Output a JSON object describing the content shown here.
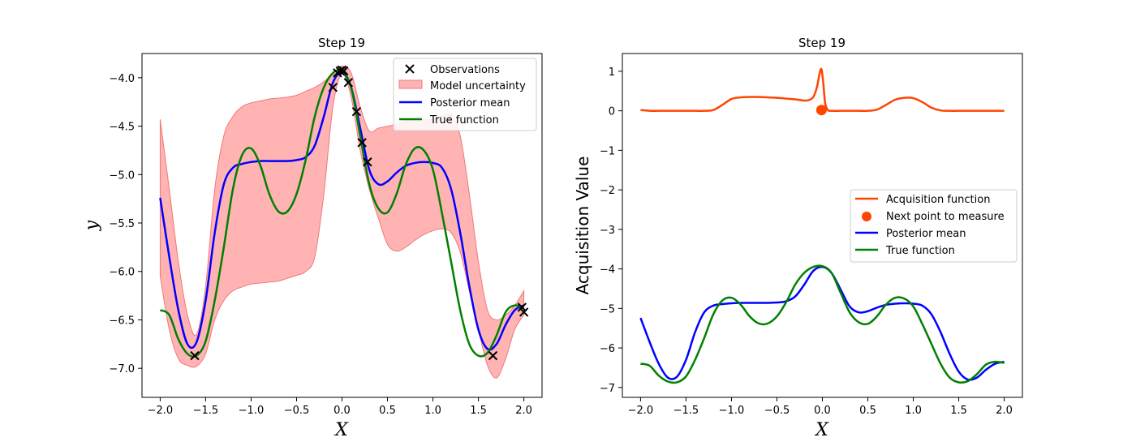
{
  "chart_data": [
    {
      "type": "line",
      "title": "Step 19",
      "xlabel": "X",
      "ylabel": "y",
      "xlim": [
        -2.2,
        2.2
      ],
      "ylim": [
        -7.3,
        -3.75
      ],
      "xticks": [
        -2.0,
        -1.5,
        -1.0,
        -0.5,
        0.0,
        0.5,
        1.0,
        1.5,
        2.0
      ],
      "xtick_labels": [
        "−2.0",
        "−1.5",
        "−1.0",
        "−0.5",
        "0.0",
        "0.5",
        "1.0",
        "1.5",
        "2.0"
      ],
      "yticks": [
        -7.0,
        -6.5,
        -6.0,
        -5.5,
        -5.0,
        -4.5,
        -4.0
      ],
      "ytick_labels": [
        "−7.0",
        "−6.5",
        "−6.0",
        "−5.5",
        "−5.0",
        "−4.5",
        "−4.0"
      ],
      "legend_position": "top-right",
      "legend": [
        "Observations",
        "Model uncertainty",
        "Posterior mean",
        "True function"
      ],
      "observations": {
        "name": "Observations",
        "color": "#000000",
        "x": [
          -1.62,
          -0.1,
          -0.05,
          -0.02,
          0.0,
          0.02,
          0.07,
          0.16,
          0.22,
          0.28,
          1.66,
          1.98,
          2.0
        ],
        "y": [
          -6.87,
          -4.1,
          -3.95,
          -3.93,
          -3.92,
          -3.93,
          -4.05,
          -4.35,
          -4.67,
          -4.87,
          -6.87,
          -6.37,
          -6.42
        ]
      },
      "uncertainty": {
        "name": "Model uncertainty",
        "color": "#ff9999",
        "x": [
          -2.0,
          -1.9,
          -1.8,
          -1.7,
          -1.6,
          -1.5,
          -1.4,
          -1.3,
          -1.2,
          -1.1,
          -1.0,
          -0.9,
          -0.8,
          -0.7,
          -0.6,
          -0.5,
          -0.4,
          -0.3,
          -0.2,
          -0.1,
          0.0,
          0.1,
          0.2,
          0.3,
          0.4,
          0.5,
          0.6,
          0.7,
          0.8,
          0.9,
          1.0,
          1.1,
          1.2,
          1.3,
          1.4,
          1.5,
          1.6,
          1.7,
          1.8,
          1.9,
          2.0
        ],
        "upper": [
          -4.43,
          -5.15,
          -5.9,
          -6.45,
          -6.65,
          -6.15,
          -5.15,
          -4.6,
          -4.4,
          -4.3,
          -4.26,
          -4.24,
          -4.22,
          -4.21,
          -4.2,
          -4.18,
          -4.14,
          -4.1,
          -4.04,
          -3.96,
          -3.88,
          -3.95,
          -4.3,
          -4.55,
          -4.52,
          -4.5,
          -4.48,
          -4.45,
          -4.43,
          -4.43,
          -4.43,
          -4.4,
          -4.38,
          -4.6,
          -5.2,
          -5.9,
          -6.4,
          -6.5,
          -6.45,
          -6.35,
          -6.2
        ],
        "lower": [
          -6.05,
          -6.6,
          -6.9,
          -6.97,
          -6.98,
          -6.85,
          -6.5,
          -6.3,
          -6.2,
          -6.16,
          -6.13,
          -6.12,
          -6.11,
          -6.1,
          -6.07,
          -6.04,
          -6.0,
          -5.85,
          -5.2,
          -4.3,
          -3.96,
          -4.2,
          -4.75,
          -5.15,
          -5.45,
          -5.72,
          -5.79,
          -5.75,
          -5.68,
          -5.62,
          -5.58,
          -5.56,
          -5.6,
          -5.8,
          -6.2,
          -6.6,
          -6.97,
          -7.1,
          -6.9,
          -6.6,
          -6.45
        ]
      },
      "series": [
        {
          "name": "Posterior mean",
          "color": "#0000ff",
          "x": [
            -2.0,
            -1.9,
            -1.8,
            -1.7,
            -1.6,
            -1.5,
            -1.4,
            -1.3,
            -1.2,
            -1.1,
            -1.0,
            -0.9,
            -0.8,
            -0.7,
            -0.6,
            -0.5,
            -0.4,
            -0.3,
            -0.2,
            -0.1,
            0.0,
            0.1,
            0.2,
            0.3,
            0.4,
            0.5,
            0.6,
            0.7,
            0.8,
            0.9,
            1.0,
            1.1,
            1.2,
            1.3,
            1.4,
            1.5,
            1.6,
            1.7,
            1.8,
            1.9,
            2.0
          ],
          "y": [
            -5.24,
            -5.85,
            -6.4,
            -6.75,
            -6.73,
            -6.3,
            -5.6,
            -5.1,
            -4.93,
            -4.89,
            -4.87,
            -4.86,
            -4.86,
            -4.86,
            -4.86,
            -4.85,
            -4.82,
            -4.7,
            -4.4,
            -4.05,
            -3.95,
            -4.1,
            -4.52,
            -4.95,
            -5.1,
            -5.07,
            -4.98,
            -4.91,
            -4.88,
            -4.87,
            -4.88,
            -4.93,
            -5.15,
            -5.6,
            -6.15,
            -6.6,
            -6.8,
            -6.75,
            -6.55,
            -6.4,
            -6.35
          ]
        },
        {
          "name": "True function",
          "color": "#008000",
          "x": [
            -2.0,
            -1.9,
            -1.8,
            -1.7,
            -1.6,
            -1.5,
            -1.4,
            -1.3,
            -1.2,
            -1.1,
            -1.0,
            -0.9,
            -0.8,
            -0.7,
            -0.6,
            -0.5,
            -0.4,
            -0.3,
            -0.2,
            -0.1,
            0.0,
            0.1,
            0.2,
            0.3,
            0.4,
            0.5,
            0.6,
            0.7,
            0.8,
            0.9,
            1.0,
            1.1,
            1.2,
            1.3,
            1.4,
            1.5,
            1.6,
            1.7,
            1.8,
            1.9,
            2.0
          ],
          "y": [
            -6.4,
            -6.45,
            -6.7,
            -6.85,
            -6.87,
            -6.72,
            -6.3,
            -5.75,
            -5.15,
            -4.8,
            -4.73,
            -4.9,
            -5.2,
            -5.38,
            -5.38,
            -5.2,
            -4.85,
            -4.4,
            -4.1,
            -3.95,
            -3.93,
            -4.1,
            -4.6,
            -5.1,
            -5.35,
            -5.39,
            -5.2,
            -4.9,
            -4.73,
            -4.75,
            -4.95,
            -5.4,
            -5.9,
            -6.4,
            -6.75,
            -6.87,
            -6.84,
            -6.66,
            -6.42,
            -6.35,
            -6.38
          ]
        }
      ]
    },
    {
      "type": "line",
      "title": "Step 19",
      "xlabel": "X",
      "ylabel": "Acquisition Value",
      "xlim": [
        -2.2,
        2.2
      ],
      "ylim": [
        -7.25,
        1.45
      ],
      "xticks": [
        -2.0,
        -1.5,
        -1.0,
        -0.5,
        0.0,
        0.5,
        1.0,
        1.5,
        2.0
      ],
      "xtick_labels": [
        "−2.0",
        "−1.5",
        "−1.0",
        "−0.5",
        "0.0",
        "0.5",
        "1.0",
        "1.5",
        "2.0"
      ],
      "yticks": [
        1,
        0,
        -1,
        -2,
        -3,
        -4,
        -5,
        -6,
        -7
      ],
      "ytick_labels": [
        "1",
        "0",
        "−1",
        "−2",
        "−3",
        "−4",
        "−5",
        "−6",
        "−7"
      ],
      "legend_position": "center-right",
      "legend": [
        "Acquisition function",
        "Next point to measure",
        "Posterior mean",
        "True function"
      ],
      "next_point": {
        "name": "Next point to measure",
        "color": "#ff4500",
        "x": -0.01,
        "y": 0.02
      },
      "series": [
        {
          "name": "Acquisition function",
          "color": "#ff4500",
          "x": [
            -2.0,
            -1.9,
            -1.8,
            -1.7,
            -1.6,
            -1.5,
            -1.4,
            -1.3,
            -1.2,
            -1.1,
            -1.0,
            -0.9,
            -0.8,
            -0.7,
            -0.6,
            -0.5,
            -0.4,
            -0.3,
            -0.2,
            -0.15,
            -0.1,
            -0.06,
            -0.03,
            -0.01,
            0.01,
            0.03,
            0.06,
            0.1,
            0.2,
            0.3,
            0.4,
            0.5,
            0.6,
            0.7,
            0.8,
            0.9,
            1.0,
            1.1,
            1.2,
            1.3,
            1.4,
            1.5,
            1.6,
            1.7,
            1.8,
            1.9,
            2.0
          ],
          "y": [
            0.02,
            0.0,
            0.0,
            0.0,
            0.0,
            0.0,
            0.0,
            0.0,
            0.02,
            0.15,
            0.3,
            0.34,
            0.35,
            0.35,
            0.34,
            0.33,
            0.31,
            0.29,
            0.26,
            0.27,
            0.35,
            0.6,
            0.95,
            1.05,
            0.7,
            0.2,
            0.02,
            0.0,
            0.0,
            0.0,
            0.0,
            0.0,
            0.03,
            0.15,
            0.28,
            0.33,
            0.32,
            0.22,
            0.08,
            0.01,
            0.0,
            0.0,
            0.0,
            0.0,
            0.0,
            0.0,
            0.0
          ]
        },
        {
          "name": "Posterior mean",
          "color": "#0000ff",
          "x": [
            -2.0,
            -1.9,
            -1.8,
            -1.7,
            -1.6,
            -1.5,
            -1.4,
            -1.3,
            -1.2,
            -1.1,
            -1.0,
            -0.9,
            -0.8,
            -0.7,
            -0.6,
            -0.5,
            -0.4,
            -0.3,
            -0.2,
            -0.1,
            0.0,
            0.1,
            0.2,
            0.3,
            0.4,
            0.5,
            0.6,
            0.7,
            0.8,
            0.9,
            1.0,
            1.1,
            1.2,
            1.3,
            1.4,
            1.5,
            1.6,
            1.7,
            1.8,
            1.9,
            2.0
          ],
          "y": [
            -5.24,
            -5.85,
            -6.4,
            -6.75,
            -6.73,
            -6.3,
            -5.6,
            -5.1,
            -4.93,
            -4.89,
            -4.87,
            -4.86,
            -4.86,
            -4.86,
            -4.86,
            -4.85,
            -4.82,
            -4.7,
            -4.4,
            -4.05,
            -3.95,
            -4.1,
            -4.52,
            -4.95,
            -5.1,
            -5.07,
            -4.98,
            -4.91,
            -4.88,
            -4.87,
            -4.88,
            -4.93,
            -5.15,
            -5.6,
            -6.15,
            -6.6,
            -6.8,
            -6.75,
            -6.55,
            -6.4,
            -6.35
          ]
        },
        {
          "name": "True function",
          "color": "#008000",
          "x": [
            -2.0,
            -1.9,
            -1.8,
            -1.7,
            -1.6,
            -1.5,
            -1.4,
            -1.3,
            -1.2,
            -1.1,
            -1.0,
            -0.9,
            -0.8,
            -0.7,
            -0.6,
            -0.5,
            -0.4,
            -0.3,
            -0.2,
            -0.1,
            0.0,
            0.1,
            0.2,
            0.3,
            0.4,
            0.5,
            0.6,
            0.7,
            0.8,
            0.9,
            1.0,
            1.1,
            1.2,
            1.3,
            1.4,
            1.5,
            1.6,
            1.7,
            1.8,
            1.9,
            2.0
          ],
          "y": [
            -6.4,
            -6.45,
            -6.7,
            -6.85,
            -6.87,
            -6.72,
            -6.3,
            -5.75,
            -5.15,
            -4.8,
            -4.73,
            -4.9,
            -5.2,
            -5.38,
            -5.38,
            -5.2,
            -4.85,
            -4.4,
            -4.1,
            -3.95,
            -3.93,
            -4.1,
            -4.6,
            -5.1,
            -5.35,
            -5.39,
            -5.2,
            -4.9,
            -4.73,
            -4.75,
            -4.95,
            -5.4,
            -5.9,
            -6.4,
            -6.75,
            -6.87,
            -6.84,
            -6.66,
            -6.42,
            -6.35,
            -6.38
          ]
        }
      ]
    }
  ]
}
